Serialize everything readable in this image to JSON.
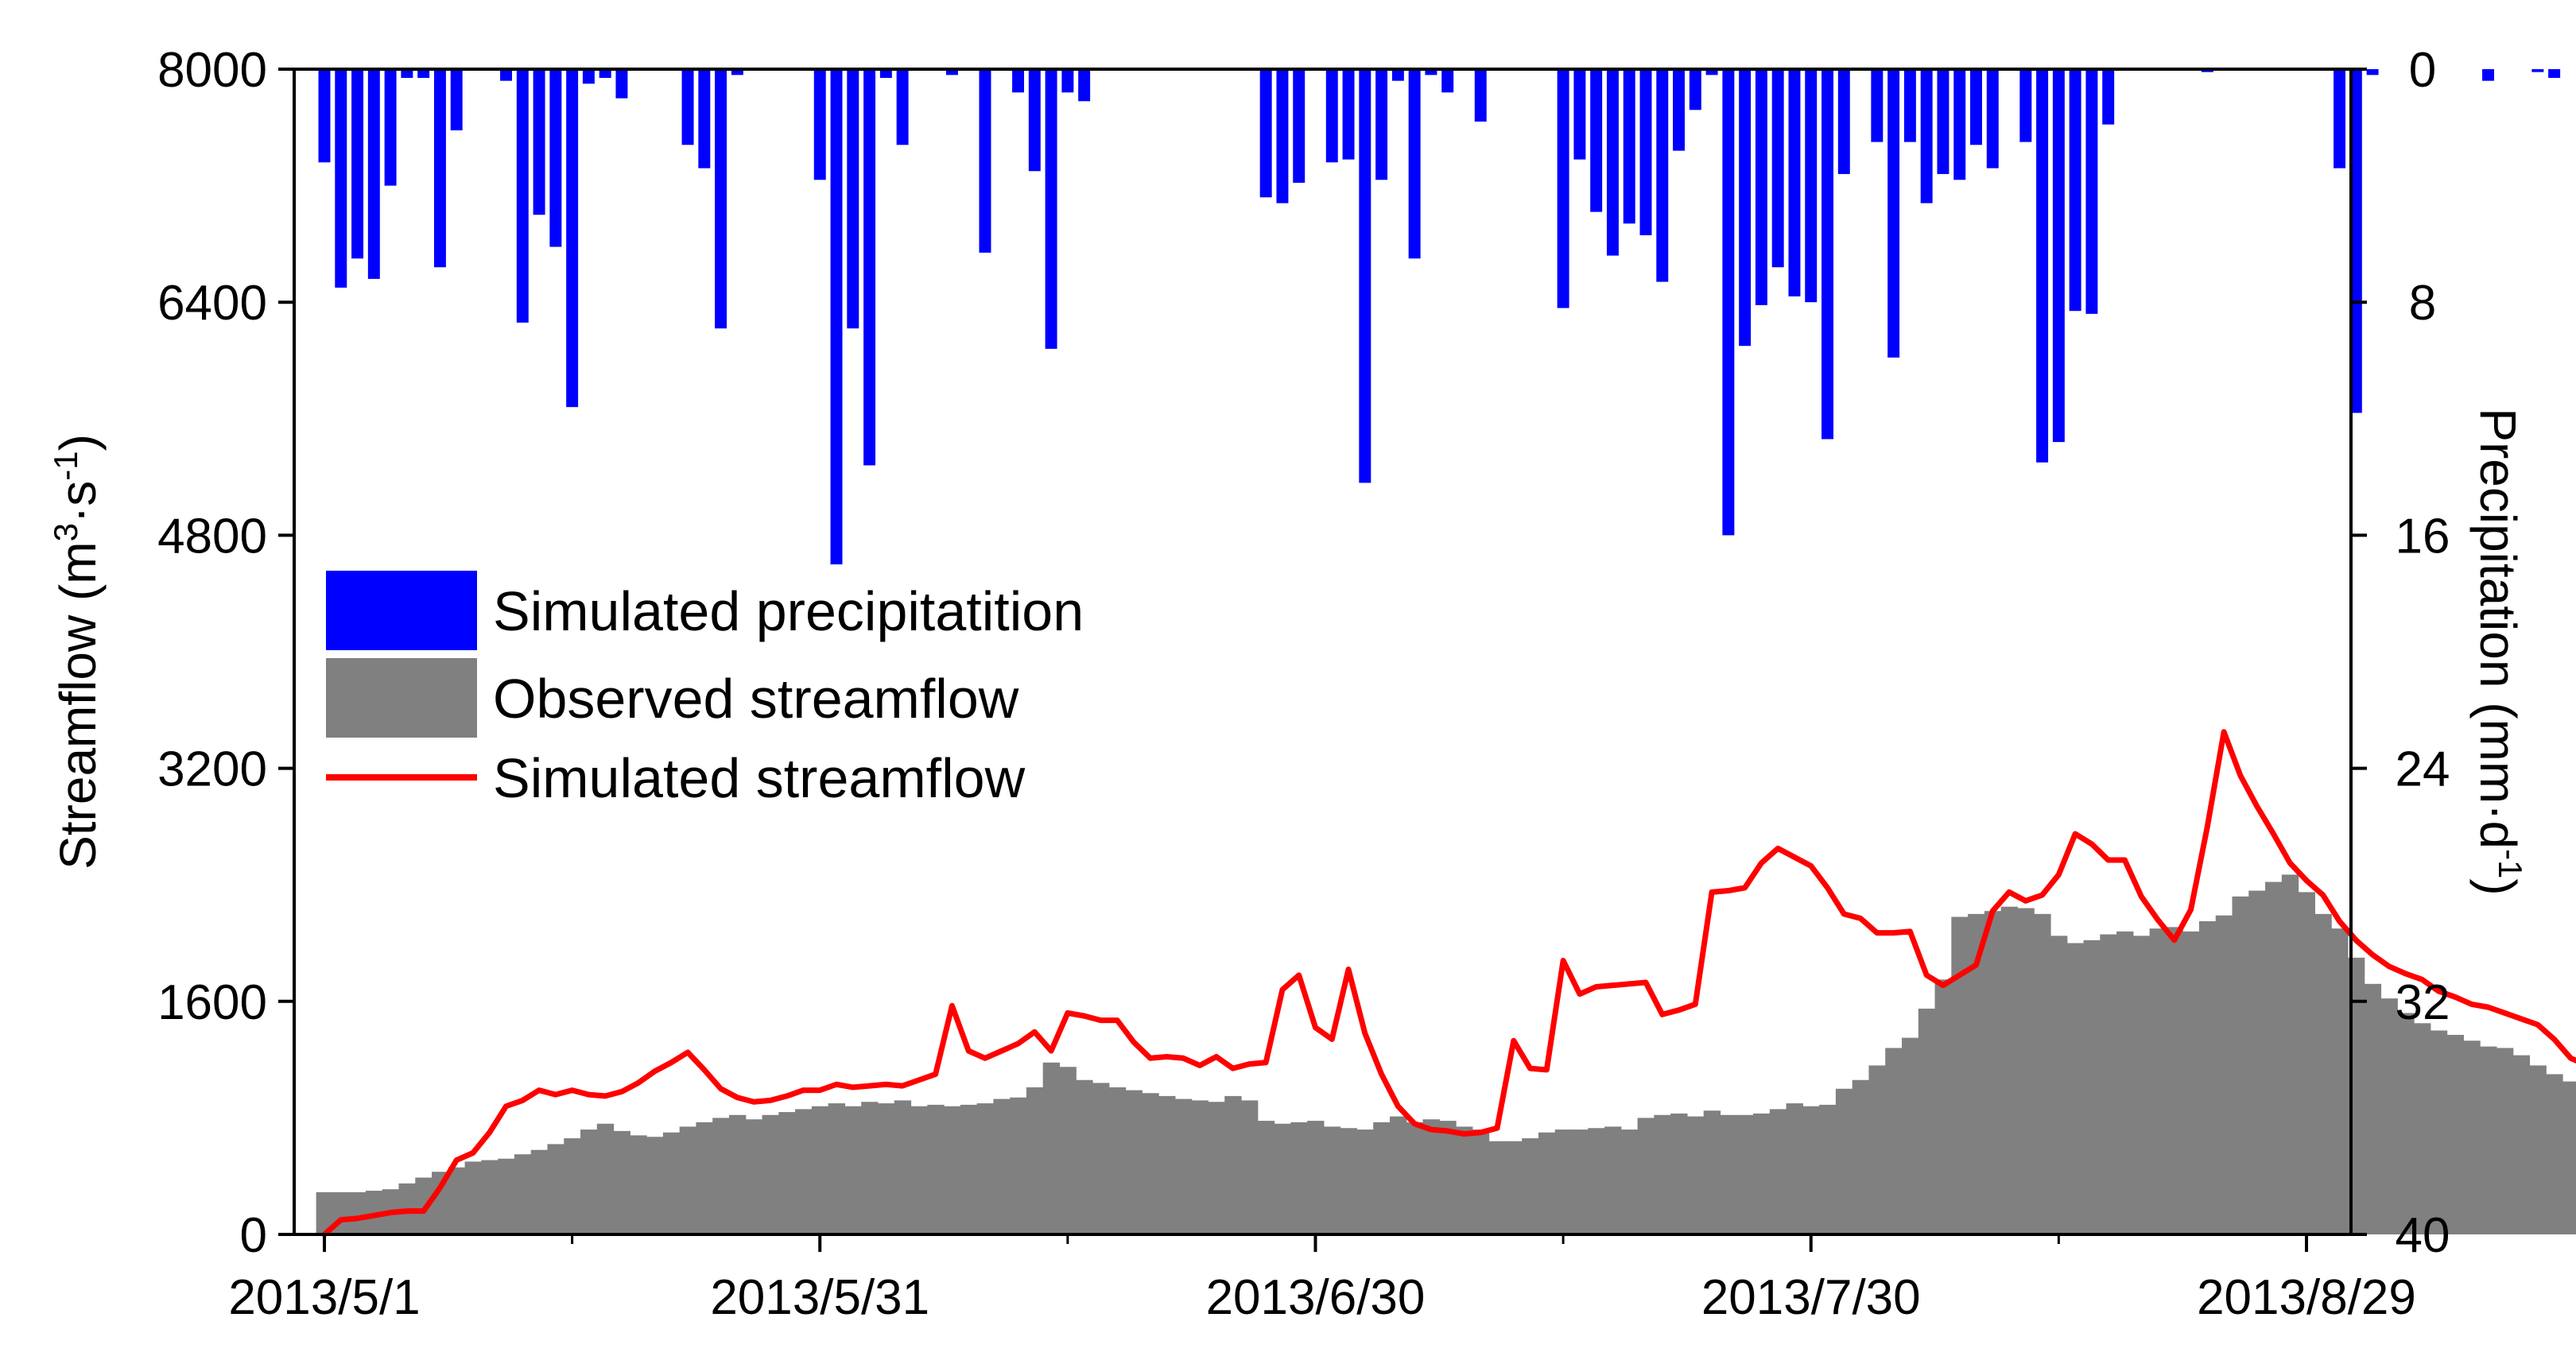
{
  "chart_data": {
    "type": "bar",
    "xlabel": "",
    "x_ticks": [
      "2013/5/1",
      "2013/5/31",
      "2013/6/30",
      "2013/7/30",
      "2013/8/29"
    ],
    "x_range": [
      "2013/5/1",
      "2013/9/1"
    ],
    "y_left": {
      "label_parts": [
        "Streamflow (m",
        "3",
        "·s",
        "-1",
        ")"
      ],
      "ticks": [
        "0",
        "1600",
        "3200",
        "4800",
        "6400",
        "8000"
      ],
      "range": [
        0,
        8000
      ]
    },
    "y_right": {
      "label_parts": [
        "Precipitation (mm·d",
        "-1",
        ")"
      ],
      "ticks": [
        "0",
        "8",
        "16",
        "24",
        "32",
        "40"
      ],
      "range": [
        0,
        40
      ],
      "inverted": true
    },
    "grid": false,
    "legend_position": "center-left",
    "colors": {
      "precipitation": "#0000ff",
      "observed": "#808080",
      "simulated": "#ff0000",
      "axis": "#000000"
    },
    "series": [
      {
        "name": "Simulated precipitatition",
        "type": "bar",
        "axis": "right",
        "start_date": "2013/5/1",
        "values": [
          3.2,
          7.5,
          6.5,
          7.2,
          4.0,
          0.3,
          0.3,
          6.8,
          2.1,
          0,
          0,
          0.4,
          8.7,
          5.0,
          6.1,
          11.6,
          0.5,
          0.3,
          1.0,
          0,
          0,
          0,
          2.6,
          3.4,
          8.9,
          0.2,
          0,
          0,
          0,
          0,
          3.8,
          17.0,
          8.9,
          13.6,
          0.3,
          2.6,
          0,
          0,
          0.2,
          0,
          6.3,
          0,
          0.8,
          3.5,
          9.6,
          0.8,
          1.1,
          0,
          0,
          0,
          0,
          0,
          0,
          0,
          0,
          0,
          0,
          4.4,
          4.6,
          3.9,
          0,
          3.2,
          3.1,
          14.2,
          3.8,
          0.4,
          6.5,
          0.2,
          0.8,
          0,
          1.8,
          0,
          0,
          0,
          0,
          8.2,
          3.1,
          4.9,
          6.4,
          5.3,
          5.7,
          7.3,
          2.8,
          1.4,
          0.2,
          16.0,
          9.5,
          8.1,
          6.8,
          7.8,
          8.0,
          12.7,
          3.6,
          0,
          2.5,
          9.9,
          2.5,
          4.6,
          3.6,
          3.8,
          2.6,
          3.4,
          0,
          2.5,
          13.5,
          12.8,
          8.3,
          8.4,
          1.9,
          0,
          0,
          0,
          0,
          0,
          0.1,
          0,
          0,
          0,
          0,
          0,
          0,
          0,
          3.4,
          11.8,
          0.2,
          0,
          0,
          0,
          0,
          0,
          0,
          0.4,
          0,
          0,
          0.1,
          0.3,
          0,
          0.4,
          0.8,
          0,
          0,
          0,
          0,
          0,
          0,
          0,
          0,
          0,
          0.2,
          0.9,
          2.0,
          9.9,
          1.6,
          0.3,
          0.7,
          5.3
        ]
      },
      {
        "name": "Observed streamflow",
        "type": "bar",
        "axis": "left",
        "start_date": "2013/5/1",
        "values": [
          290,
          290,
          290,
          300,
          310,
          350,
          390,
          430,
          460,
          500,
          510,
          520,
          550,
          580,
          620,
          660,
          720,
          760,
          710,
          680,
          670,
          700,
          740,
          770,
          800,
          820,
          790,
          820,
          840,
          860,
          880,
          900,
          880,
          910,
          900,
          920,
          880,
          890,
          880,
          890,
          900,
          930,
          940,
          1010,
          1180,
          1150,
          1060,
          1040,
          1010,
          990,
          970,
          950,
          930,
          920,
          910,
          950,
          920,
          780,
          760,
          770,
          780,
          740,
          730,
          720,
          770,
          810,
          770,
          790,
          780,
          740,
          720,
          640,
          640,
          660,
          700,
          720,
          720,
          730,
          740,
          720,
          800,
          820,
          830,
          810,
          850,
          820,
          820,
          830,
          860,
          900,
          880,
          890,
          1000,
          1060,
          1160,
          1280,
          1350,
          1550,
          1750,
          2180,
          2200,
          2220,
          2250,
          2240,
          2200,
          2050,
          2000,
          2020,
          2060,
          2080,
          2050,
          2100,
          2110,
          2080,
          2150,
          2190,
          2320,
          2360,
          2420,
          2470,
          2350,
          2200,
          2100,
          1900,
          1720,
          1620,
          1520,
          1450,
          1400,
          1370,
          1330,
          1290,
          1280,
          1230,
          1160,
          1100,
          1050,
          1010,
          960,
          930,
          910,
          880,
          870,
          860,
          860,
          840,
          840,
          830,
          820,
          810,
          790,
          780,
          770,
          790,
          790,
          770,
          770,
          750
        ]
      },
      {
        "name": "Simulated streamflow",
        "type": "line",
        "axis": "left",
        "start_date": "2013/5/1",
        "values": [
          0,
          100,
          110,
          130,
          150,
          160,
          160,
          320,
          510,
          560,
          700,
          880,
          920,
          990,
          960,
          990,
          960,
          950,
          980,
          1040,
          1120,
          1180,
          1250,
          1130,
          1000,
          940,
          910,
          920,
          950,
          990,
          990,
          1030,
          1010,
          1020,
          1030,
          1020,
          1060,
          1100,
          1570,
          1260,
          1210,
          1260,
          1310,
          1390,
          1260,
          1520,
          1500,
          1470,
          1470,
          1320,
          1210,
          1220,
          1210,
          1160,
          1220,
          1140,
          1170,
          1180,
          1680,
          1780,
          1420,
          1340,
          1820,
          1380,
          1100,
          880,
          760,
          720,
          710,
          690,
          700,
          730,
          1330,
          1140,
          1130,
          1880,
          1650,
          1700,
          1710,
          1720,
          1730,
          1510,
          1540,
          1580,
          2350,
          2360,
          2380,
          2550,
          2650,
          2590,
          2530,
          2380,
          2200,
          2170,
          2070,
          2070,
          2080,
          1780,
          1710,
          1780,
          1850,
          2220,
          2350,
          2290,
          2330,
          2470,
          2750,
          2680,
          2570,
          2570,
          2320,
          2160,
          2020,
          2230,
          2800,
          3450,
          3150,
          2940,
          2750,
          2550,
          2430,
          2330,
          2150,
          2020,
          1920,
          1840,
          1790,
          1750,
          1670,
          1630,
          1580,
          1560,
          1520,
          1480,
          1440,
          1340,
          1210,
          1160,
          1120,
          1090,
          1070,
          1040,
          1010,
          980,
          950,
          920,
          890,
          860,
          840,
          820,
          800,
          780,
          740,
          710,
          680,
          650,
          620,
          590,
          560,
          530,
          500,
          470,
          440,
          410,
          380,
          360,
          1000,
          870,
          400
        ]
      }
    ],
    "simulated_streamflow_values_per_day_note": ""
  }
}
